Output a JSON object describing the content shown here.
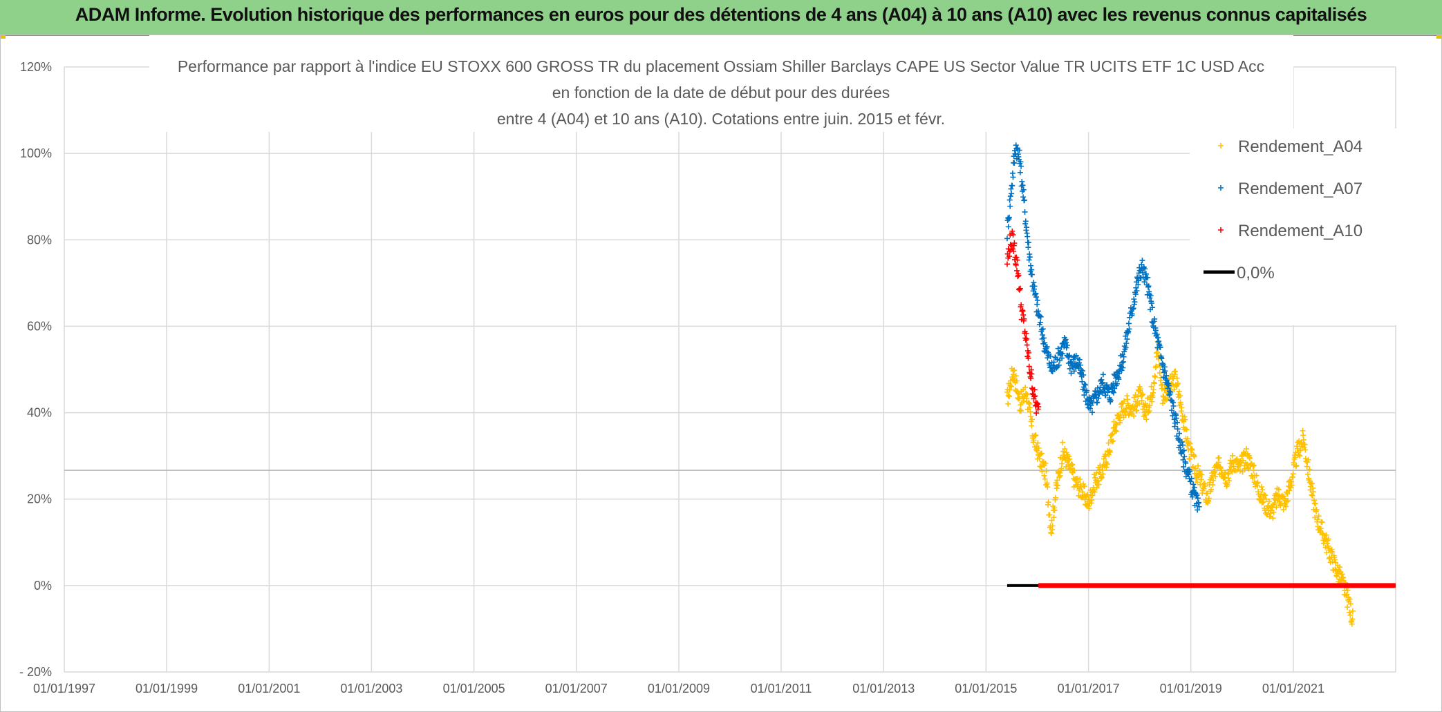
{
  "banner": {
    "title": "ADAM Informe. Evolution historique des performances en euros pour des détentions de 4 ans (A04) à 10 ans (A10) avec les revenus connus capitalisés"
  },
  "chart_data": {
    "type": "scatter",
    "title_lines": [
      "Performance par rapport à l'indice EU STOXX 600 GROSS TR  du placement Ossiam Shiller Barclays CAPE US Sector Value TR UCITS ETF 1C USD Acc",
      "en fonction de la date de début pour des durées",
      "entre 4 (A04) et 10 ans (A10). Cotations entre juin. 2015 et févr."
    ],
    "x_axis": {
      "type": "date",
      "range": [
        "1997-01-01",
        "2023-01-01"
      ],
      "tick_labels": [
        "01/01/1997",
        "01/01/1999",
        "01/01/2001",
        "01/01/2003",
        "01/01/2005",
        "01/01/2007",
        "01/01/2009",
        "01/01/2011",
        "01/01/2013",
        "01/01/2015",
        "01/01/2017",
        "01/01/2019",
        "01/01/2021"
      ]
    },
    "y_axis": {
      "range": [
        -0.2,
        1.2
      ],
      "format": "percent",
      "tick_values": [
        -0.2,
        0,
        0.2,
        0.4,
        0.6,
        0.8,
        1.0,
        1.2
      ],
      "tick_labels": [
        "- 20%",
        "0%",
        "20%",
        "40%",
        "60%",
        "80%",
        "100%",
        "120%"
      ]
    },
    "grid": true,
    "legend_position": "top-right",
    "series": [
      {
        "name": "Rendement_A04",
        "color": "#ffc000",
        "marker": "plus",
        "points": [
          [
            "2015-06-01",
            0.43
          ],
          [
            "2015-07-15",
            0.5
          ],
          [
            "2015-09-01",
            0.42
          ],
          [
            "2015-10-15",
            0.45
          ],
          [
            "2015-12-01",
            0.35
          ],
          [
            "2016-01-15",
            0.3
          ],
          [
            "2016-03-01",
            0.26
          ],
          [
            "2016-04-10",
            0.13
          ],
          [
            "2016-05-15",
            0.22
          ],
          [
            "2016-07-01",
            0.31
          ],
          [
            "2016-08-15",
            0.28
          ],
          [
            "2016-10-01",
            0.24
          ],
          [
            "2016-11-15",
            0.22
          ],
          [
            "2017-01-01",
            0.19
          ],
          [
            "2017-02-15",
            0.24
          ],
          [
            "2017-04-01",
            0.26
          ],
          [
            "2017-05-15",
            0.3
          ],
          [
            "2017-07-01",
            0.36
          ],
          [
            "2017-08-15",
            0.4
          ],
          [
            "2017-10-01",
            0.42
          ],
          [
            "2017-11-15",
            0.41
          ],
          [
            "2018-01-01",
            0.44
          ],
          [
            "2018-02-15",
            0.4
          ],
          [
            "2018-04-01",
            0.45
          ],
          [
            "2018-05-10",
            0.55
          ],
          [
            "2018-06-15",
            0.44
          ],
          [
            "2018-08-01",
            0.46
          ],
          [
            "2018-09-15",
            0.48
          ],
          [
            "2018-11-01",
            0.4
          ],
          [
            "2018-12-15",
            0.32
          ],
          [
            "2019-02-01",
            0.27
          ],
          [
            "2019-03-15",
            0.24
          ],
          [
            "2019-05-01",
            0.2
          ],
          [
            "2019-06-15",
            0.26
          ],
          [
            "2019-08-01",
            0.28
          ],
          [
            "2019-09-15",
            0.25
          ],
          [
            "2019-11-01",
            0.29
          ],
          [
            "2019-12-15",
            0.27
          ],
          [
            "2020-02-01",
            0.3
          ],
          [
            "2020-03-15",
            0.27
          ],
          [
            "2020-05-01",
            0.22
          ],
          [
            "2020-06-15",
            0.19
          ],
          [
            "2020-08-01",
            0.17
          ],
          [
            "2020-09-15",
            0.21
          ],
          [
            "2020-11-01",
            0.19
          ],
          [
            "2020-12-15",
            0.24
          ],
          [
            "2021-02-01",
            0.31
          ],
          [
            "2021-03-15",
            0.34
          ],
          [
            "2021-05-01",
            0.24
          ],
          [
            "2021-06-15",
            0.16
          ],
          [
            "2021-08-01",
            0.12
          ],
          [
            "2021-09-15",
            0.08
          ],
          [
            "2021-11-01",
            0.04
          ],
          [
            "2021-12-15",
            0.01
          ],
          [
            "2022-02-01",
            -0.04
          ],
          [
            "2022-03-01",
            -0.08
          ]
        ]
      },
      {
        "name": "Rendement_A07",
        "color": "#0070c0",
        "marker": "plus",
        "points": [
          [
            "2015-06-01",
            0.82
          ],
          [
            "2015-07-01",
            0.92
          ],
          [
            "2015-08-01",
            1.02
          ],
          [
            "2015-09-01",
            0.98
          ],
          [
            "2015-10-01",
            0.88
          ],
          [
            "2015-11-01",
            0.78
          ],
          [
            "2015-12-01",
            0.7
          ],
          [
            "2016-01-15",
            0.62
          ],
          [
            "2016-03-01",
            0.55
          ],
          [
            "2016-04-15",
            0.5
          ],
          [
            "2016-06-01",
            0.53
          ],
          [
            "2016-07-15",
            0.56
          ],
          [
            "2016-09-01",
            0.51
          ],
          [
            "2016-10-15",
            0.52
          ],
          [
            "2016-12-01",
            0.46
          ],
          [
            "2017-01-15",
            0.41
          ],
          [
            "2017-03-01",
            0.44
          ],
          [
            "2017-04-15",
            0.47
          ],
          [
            "2017-06-01",
            0.44
          ],
          [
            "2017-07-15",
            0.48
          ],
          [
            "2017-09-01",
            0.52
          ],
          [
            "2017-10-15",
            0.6
          ],
          [
            "2017-12-01",
            0.68
          ],
          [
            "2018-01-15",
            0.74
          ],
          [
            "2018-03-01",
            0.69
          ],
          [
            "2018-04-15",
            0.6
          ],
          [
            "2018-06-01",
            0.53
          ],
          [
            "2018-07-15",
            0.47
          ],
          [
            "2018-09-01",
            0.4
          ],
          [
            "2018-10-15",
            0.33
          ],
          [
            "2018-12-01",
            0.27
          ],
          [
            "2019-01-15",
            0.22
          ],
          [
            "2019-03-01",
            0.17
          ]
        ]
      },
      {
        "name": "Rendement_A10",
        "color": "#ff0000",
        "marker": "plus",
        "points": [
          [
            "2015-06-01",
            0.75
          ],
          [
            "2015-06-20",
            0.79
          ],
          [
            "2015-07-10",
            0.8
          ],
          [
            "2015-08-01",
            0.76
          ],
          [
            "2015-08-20",
            0.72
          ],
          [
            "2015-09-10",
            0.64
          ],
          [
            "2015-10-01",
            0.6
          ],
          [
            "2015-10-20",
            0.55
          ],
          [
            "2015-11-10",
            0.5
          ],
          [
            "2015-12-01",
            0.46
          ],
          [
            "2015-12-20",
            0.42
          ],
          [
            "2016-01-10",
            0.4
          ]
        ],
        "zero_line_from": "2016-01-10"
      },
      {
        "name": "0,0%",
        "color": "#000000",
        "marker": "line",
        "points": [
          [
            "2015-06-01",
            0
          ],
          [
            "2022-12-31",
            0
          ]
        ]
      }
    ]
  }
}
